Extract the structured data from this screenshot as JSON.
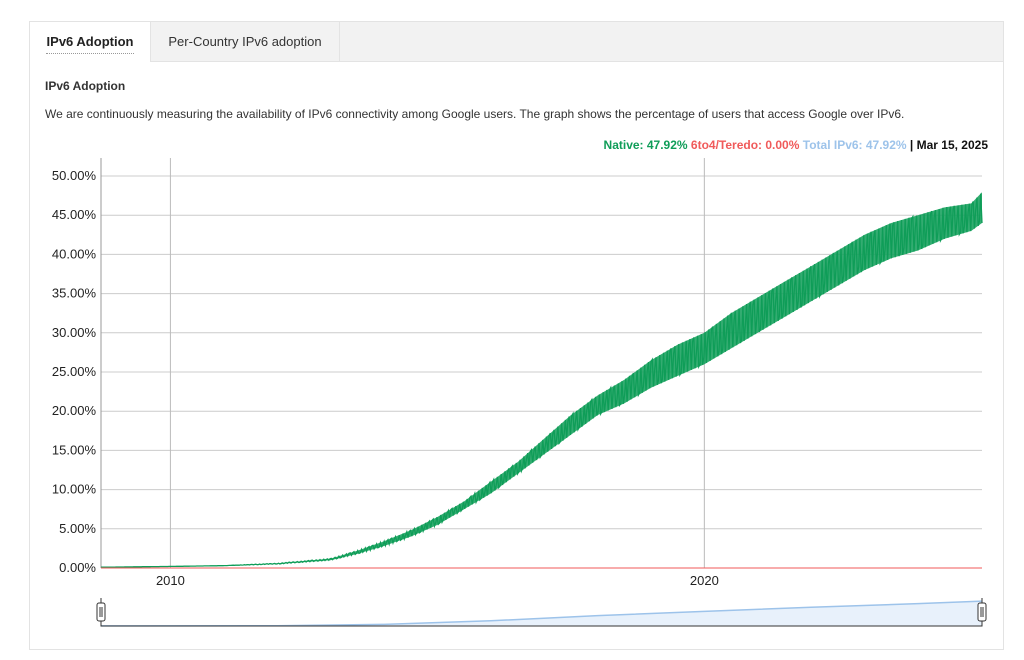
{
  "tabs": [
    {
      "label": "IPv6 Adoption",
      "active": true
    },
    {
      "label": "Per-Country IPv6 adoption",
      "active": false
    }
  ],
  "section_title": "IPv6 Adoption",
  "description": "We are continuously measuring the availability of IPv6 connectivity among Google users. The graph shows the percentage of users that access Google over IPv6.",
  "legend": {
    "native": "Native: 47.92%",
    "teredo": "6to4/Teredo: 0.00%",
    "total": "Total IPv6: 47.92%",
    "separator": " | ",
    "date": "Mar 15, 2025"
  },
  "colors": {
    "native": "#0f9d58",
    "teredo": "#f05a5a",
    "total": "#9dc3ea",
    "grid": "#cccccc"
  },
  "chart_data": {
    "type": "area",
    "title": "",
    "xlabel": "",
    "ylabel": "",
    "xlim": [
      2008.7,
      2025.2
    ],
    "ylim": [
      0,
      50
    ],
    "yticks": [
      "0.00%",
      "5.00%",
      "10.00%",
      "15.00%",
      "20.00%",
      "25.00%",
      "30.00%",
      "35.00%",
      "40.00%",
      "45.00%",
      "50.00%"
    ],
    "xticks": [
      {
        "value": 2010,
        "label": "2010"
      },
      {
        "value": 2020,
        "label": "2020"
      }
    ],
    "grid": true,
    "series": [
      {
        "name": "Native",
        "x": [
          2008.7,
          2010,
          2011,
          2012,
          2013,
          2013.5,
          2014,
          2014.5,
          2015,
          2015.5,
          2016,
          2016.5,
          2017,
          2017.5,
          2018,
          2018.5,
          2019,
          2019.5,
          2020,
          2020.5,
          2021,
          2021.5,
          2022,
          2022.5,
          2023,
          2023.5,
          2024,
          2024.5,
          2025,
          2025.2
        ],
        "low": [
          0.1,
          0.2,
          0.3,
          0.5,
          1.0,
          1.8,
          2.8,
          4.0,
          5.5,
          7.5,
          9.5,
          12.0,
          14.5,
          17.0,
          19.5,
          21.0,
          23.0,
          24.5,
          26.0,
          28.0,
          30.0,
          32.0,
          34.0,
          36.0,
          38.0,
          39.5,
          40.5,
          42.0,
          43.0,
          44.0
        ],
        "high": [
          0.1,
          0.2,
          0.3,
          0.6,
          1.2,
          2.2,
          3.4,
          4.8,
          6.5,
          8.5,
          11.0,
          13.5,
          16.5,
          19.5,
          22.0,
          24.0,
          26.5,
          28.5,
          30.0,
          32.5,
          34.5,
          36.5,
          38.5,
          40.5,
          42.5,
          44.0,
          45.0,
          46.0,
          46.5,
          47.92
        ]
      },
      {
        "name": "6to4/Teredo",
        "x": [
          2008.7,
          2025.2
        ],
        "values": [
          0.0,
          0.0
        ]
      }
    ],
    "navigator": {
      "x": [
        2008.7,
        2012,
        2014,
        2016,
        2018,
        2020,
        2022,
        2024,
        2025.2
      ],
      "values": [
        0.1,
        0.5,
        3.0,
        10.0,
        20.0,
        28.0,
        36.0,
        43.0,
        47.92
      ]
    }
  }
}
